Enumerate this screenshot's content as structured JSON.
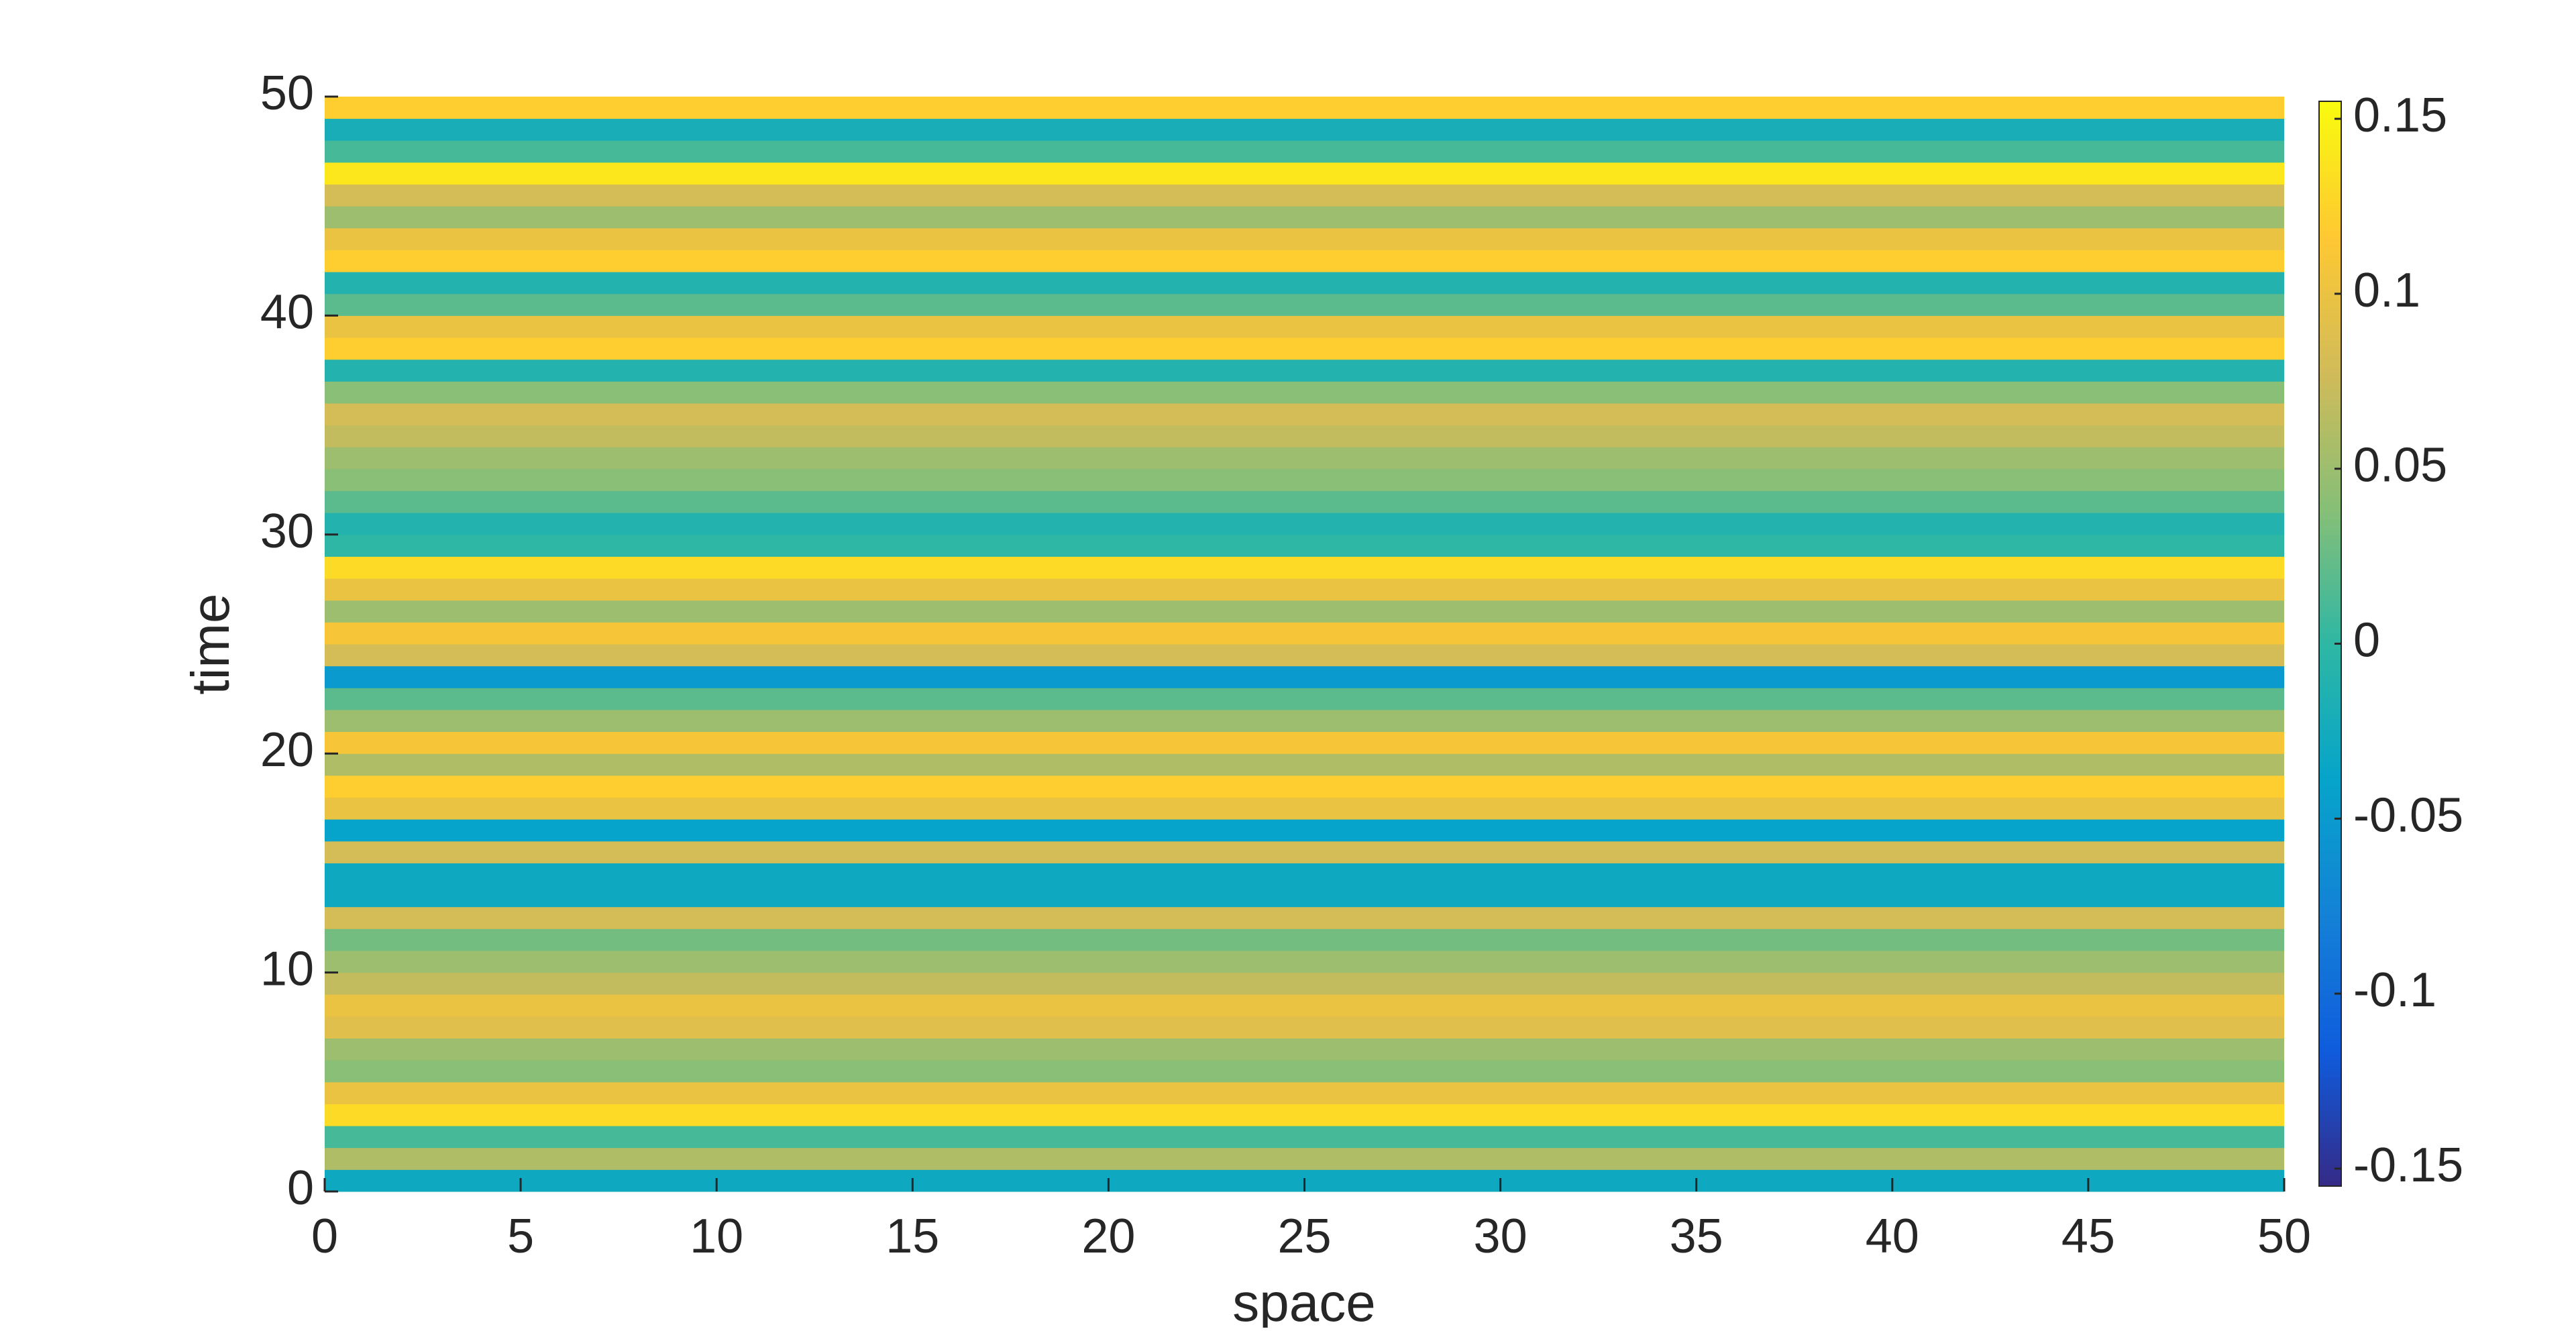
{
  "chart_data": {
    "type": "heatmap",
    "xlabel": "space",
    "ylabel": "time",
    "xlim": [
      0,
      50
    ],
    "xticks": [
      0,
      5,
      10,
      15,
      20,
      25,
      30,
      35,
      40,
      45,
      50
    ],
    "ylim": [
      0,
      50
    ],
    "yticks": [
      0,
      10,
      20,
      30,
      40,
      50
    ],
    "ybins": [
      0,
      1,
      2,
      3,
      4,
      5,
      6,
      7,
      8,
      9,
      10,
      11,
      12,
      13,
      14,
      15,
      16,
      17,
      18,
      19,
      20,
      21,
      22,
      23,
      24,
      25,
      26,
      27,
      28,
      29,
      30,
      31,
      32,
      33,
      34,
      35,
      36,
      37,
      38,
      39,
      40,
      41,
      42,
      43,
      44,
      45,
      46,
      47,
      48,
      49,
      50
    ],
    "values": [
      -0.03,
      0.06,
      0.01,
      0.13,
      0.1,
      0.04,
      0.05,
      0.09,
      0.1,
      0.07,
      0.05,
      0.03,
      0.08,
      -0.03,
      -0.03,
      0.08,
      -0.04,
      0.1,
      0.12,
      0.06,
      0.11,
      0.05,
      0.02,
      -0.05,
      0.08,
      0.11,
      0.05,
      0.1,
      0.13,
      0.0,
      -0.01,
      0.02,
      0.04,
      0.05,
      0.07,
      0.08,
      0.04,
      -0.01,
      0.12,
      0.1,
      0.02,
      -0.01,
      0.12,
      0.1,
      0.05,
      0.08,
      0.14,
      0.01,
      -0.02,
      0.12
    ],
    "clim": [
      -0.155,
      0.155
    ],
    "cticks": [
      -0.15,
      -0.1,
      -0.05,
      0,
      0.05,
      0.1,
      0.15
    ],
    "colormap": [
      "#352a87",
      "#0f5cdd",
      "#1481d6",
      "#06a4ca",
      "#2eb7a4",
      "#87bf77",
      "#d1bb59",
      "#fec832",
      "#f9fb0e"
    ]
  }
}
